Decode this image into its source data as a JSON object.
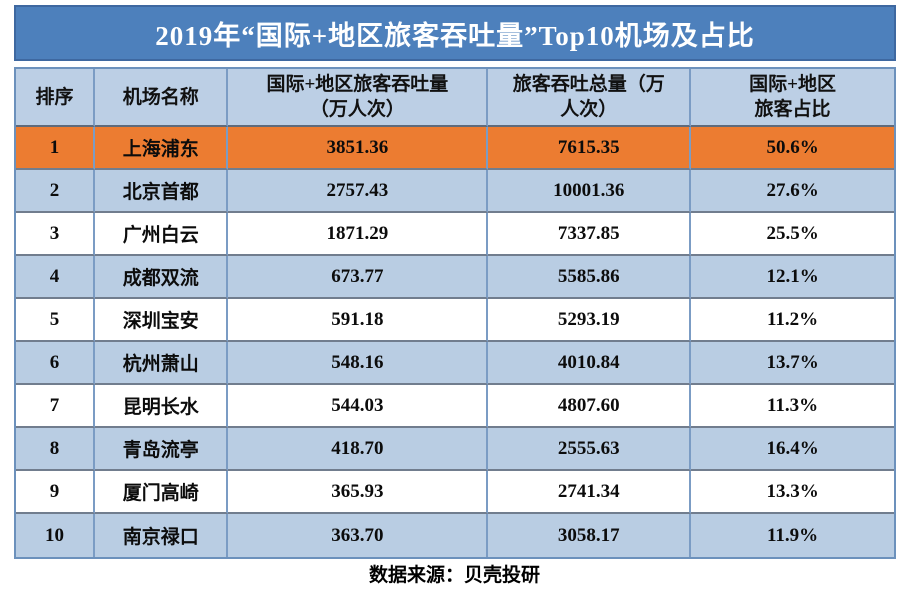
{
  "title": "2019年“国际+地区旅客吞吐量”Top10机场及占比",
  "table": {
    "columns": [
      {
        "lines": [
          "排序"
        ]
      },
      {
        "lines": [
          "机场名称"
        ]
      },
      {
        "lines": [
          "国际+地区旅客吞吐量",
          "（万人次）"
        ]
      },
      {
        "lines": [
          "旅客吞吐总量（万",
          "人次）"
        ]
      },
      {
        "lines": [
          "国际+地区",
          "旅客占比"
        ]
      }
    ],
    "rows": [
      {
        "rank": "1",
        "airport": "上海浦东",
        "intl_regional": "3851.36",
        "total": "7615.35",
        "share": "50.6%"
      },
      {
        "rank": "2",
        "airport": "北京首都",
        "intl_regional": "2757.43",
        "total": "10001.36",
        "share": "27.6%"
      },
      {
        "rank": "3",
        "airport": "广州白云",
        "intl_regional": "1871.29",
        "total": "7337.85",
        "share": "25.5%"
      },
      {
        "rank": "4",
        "airport": "成都双流",
        "intl_regional": "673.77",
        "total": "5585.86",
        "share": "12.1%"
      },
      {
        "rank": "5",
        "airport": "深圳宝安",
        "intl_regional": "591.18",
        "total": "5293.19",
        "share": "11.2%"
      },
      {
        "rank": "6",
        "airport": "杭州萧山",
        "intl_regional": "548.16",
        "total": "4010.84",
        "share": "13.7%"
      },
      {
        "rank": "7",
        "airport": "昆明长水",
        "intl_regional": "544.03",
        "total": "4807.60",
        "share": "11.3%"
      },
      {
        "rank": "8",
        "airport": "青岛流亭",
        "intl_regional": "418.70",
        "total": "2555.63",
        "share": "16.4%"
      },
      {
        "rank": "9",
        "airport": "厦门高崎",
        "intl_regional": "365.93",
        "total": "2741.34",
        "share": "13.3%"
      },
      {
        "rank": "10",
        "airport": "南京禄口",
        "intl_regional": "363.70",
        "total": "3058.17",
        "share": "11.9%"
      }
    ]
  },
  "footer": {
    "source": "数据来源：贝壳投研"
  },
  "colors": {
    "title_bar_blue": "#4D80BC",
    "title_border_blue": "#3E68A0",
    "header_blue": "#BCCFE5",
    "band_blue": "#B9CDE3",
    "highlight_orange": "#EC7C31",
    "vertical_border_blue": "#7B9CC4",
    "horizontal_border_gray": "#717D8E",
    "title_text": "#FFFFFF",
    "body_text": "#0C0C0C"
  },
  "chart_data": {
    "type": "table",
    "title": "2019年“国际+地区旅客吞吐量”Top10机场及占比",
    "columns": [
      "排序",
      "机场名称",
      "国际+地区旅客吞吐量（万人次）",
      "旅客吞吐总量（万人次）",
      "国际+地区旅客占比"
    ],
    "rows": [
      [
        1,
        "上海浦东",
        3851.36,
        7615.35,
        "50.6%"
      ],
      [
        2,
        "北京首都",
        2757.43,
        10001.36,
        "27.6%"
      ],
      [
        3,
        "广州白云",
        1871.29,
        7337.85,
        "25.5%"
      ],
      [
        4,
        "成都双流",
        673.77,
        5585.86,
        "12.1%"
      ],
      [
        5,
        "深圳宝安",
        591.18,
        5293.19,
        "11.2%"
      ],
      [
        6,
        "杭州萧山",
        548.16,
        4010.84,
        "13.7%"
      ],
      [
        7,
        "昆明长水",
        544.03,
        4807.6,
        "11.3%"
      ],
      [
        8,
        "青岛流亭",
        418.7,
        2555.63,
        "16.4%"
      ],
      [
        9,
        "厦门高崎",
        365.93,
        2741.34,
        "13.3%"
      ],
      [
        10,
        "南京禄口",
        363.7,
        3058.17,
        "11.9%"
      ]
    ],
    "highlight_row_rank": 1,
    "source": "数据来源：贝壳投研",
    "layout": {
      "banded_rows": true,
      "first_row_highlight": "orange"
    }
  }
}
